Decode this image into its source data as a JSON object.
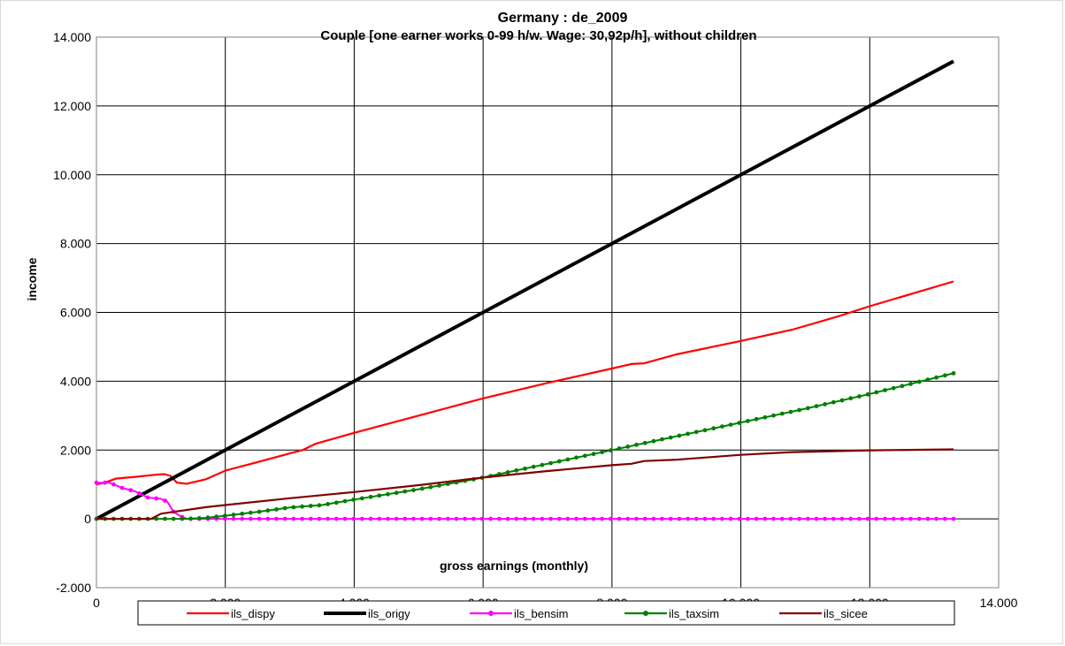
{
  "chart_data": {
    "type": "line",
    "title": "Germany : de_2009",
    "subtitle": "Couple [one earner works 0-99 h/w. Wage: 30,92p/h], without children",
    "xlabel": "gross earnings (monthly)",
    "ylabel": "income",
    "xlim": [
      0,
      14000
    ],
    "ylim": [
      -2000,
      14000
    ],
    "x_ticks": [
      "0",
      "2.000",
      "4.000",
      "6.000",
      "8.000",
      "10.000",
      "12.000",
      "14.000"
    ],
    "y_ticks": [
      "-2.000",
      "0",
      "2.000",
      "4.000",
      "6.000",
      "8.000",
      "10.000",
      "12.000",
      "14.000"
    ],
    "grid": true,
    "legend_position": "bottom",
    "series": [
      {
        "name": "ils_dispy",
        "color": "#ff0000",
        "marker": "none",
        "points": [
          [
            0,
            1000
          ],
          [
            130,
            1050
          ],
          [
            300,
            1170
          ],
          [
            600,
            1220
          ],
          [
            900,
            1280
          ],
          [
            1050,
            1300
          ],
          [
            1150,
            1250
          ],
          [
            1250,
            1050
          ],
          [
            1400,
            1020
          ],
          [
            1700,
            1150
          ],
          [
            2000,
            1400
          ],
          [
            2500,
            1650
          ],
          [
            3000,
            1900
          ],
          [
            3200,
            2000
          ],
          [
            3400,
            2180
          ],
          [
            4000,
            2500
          ],
          [
            5000,
            3000
          ],
          [
            6000,
            3500
          ],
          [
            7000,
            3950
          ],
          [
            8000,
            4370
          ],
          [
            8300,
            4500
          ],
          [
            8500,
            4520
          ],
          [
            9000,
            4780
          ],
          [
            10000,
            5170
          ],
          [
            10800,
            5500
          ],
          [
            11500,
            5880
          ],
          [
            12000,
            6180
          ],
          [
            13300,
            6900
          ]
        ]
      },
      {
        "name": "ils_origy",
        "color": "#000000",
        "marker": "none",
        "points": [
          [
            0,
            0
          ],
          [
            13300,
            13300
          ]
        ]
      },
      {
        "name": "ils_bensim",
        "color": "#ff00ff",
        "marker": "circle",
        "points": [
          [
            0,
            1050
          ],
          [
            200,
            1050
          ],
          [
            400,
            900
          ],
          [
            600,
            800
          ],
          [
            800,
            620
          ],
          [
            1000,
            580
          ],
          [
            1100,
            500
          ],
          [
            1200,
            200
          ],
          [
            1300,
            80
          ],
          [
            1400,
            0
          ],
          [
            13300,
            0
          ]
        ]
      },
      {
        "name": "ils_taxsim",
        "color": "#008000",
        "marker": "circle",
        "points": [
          [
            0,
            0
          ],
          [
            1400,
            0
          ],
          [
            1700,
            30
          ],
          [
            2000,
            90
          ],
          [
            2500,
            200
          ],
          [
            3000,
            330
          ],
          [
            3500,
            400
          ],
          [
            4000,
            560
          ],
          [
            5000,
            860
          ],
          [
            6000,
            1200
          ],
          [
            7000,
            1600
          ],
          [
            8000,
            2000
          ],
          [
            9000,
            2400
          ],
          [
            10000,
            2800
          ],
          [
            11000,
            3200
          ],
          [
            12000,
            3630
          ],
          [
            13300,
            4230
          ]
        ]
      },
      {
        "name": "ils_sicee",
        "color": "#800000",
        "marker": "none",
        "points": [
          [
            0,
            0
          ],
          [
            850,
            0
          ],
          [
            1000,
            150
          ],
          [
            1700,
            340
          ],
          [
            2000,
            400
          ],
          [
            3000,
            600
          ],
          [
            4000,
            780
          ],
          [
            5000,
            980
          ],
          [
            6000,
            1200
          ],
          [
            7000,
            1390
          ],
          [
            8000,
            1560
          ],
          [
            8300,
            1600
          ],
          [
            8500,
            1680
          ],
          [
            9000,
            1720
          ],
          [
            10000,
            1860
          ],
          [
            10800,
            1940
          ],
          [
            12000,
            1990
          ],
          [
            13300,
            2020
          ]
        ]
      }
    ]
  }
}
